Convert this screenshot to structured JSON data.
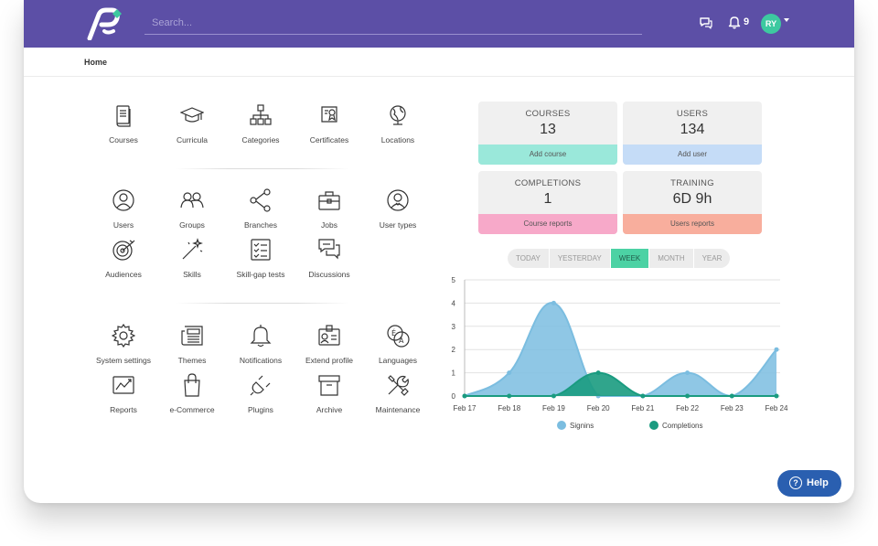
{
  "header": {
    "search_placeholder": "Search...",
    "notifications_count": "9",
    "avatar_initials": "RY"
  },
  "breadcrumb": {
    "home": "Home"
  },
  "tiles": {
    "courses": "Courses",
    "curricula": "Curricula",
    "categories": "Categories",
    "certificates": "Certificates",
    "locations": "Locations",
    "users": "Users",
    "groups": "Groups",
    "branches": "Branches",
    "jobs": "Jobs",
    "user_types": "User types",
    "audiences": "Audiences",
    "skills": "Skills",
    "skill_gap_tests": "Skill-gap tests",
    "discussions": "Discussions",
    "system_settings": "System settings",
    "themes": "Themes",
    "notifications": "Notifications",
    "extend_profile": "Extend profile",
    "languages": "Languages",
    "reports": "Reports",
    "ecommerce": "e-Commerce",
    "plugins": "Plugins",
    "archive": "Archive",
    "maintenance": "Maintenance"
  },
  "stats": {
    "courses": {
      "title": "COURSES",
      "value": "13",
      "action": "Add course",
      "color": "#9ae8da"
    },
    "users": {
      "title": "USERS",
      "value": "134",
      "action": "Add user",
      "color": "#c5dcf7"
    },
    "completions": {
      "title": "COMPLETIONS",
      "value": "1",
      "action": "Course reports",
      "color": "#f7a9c9"
    },
    "training": {
      "title": "TRAINING",
      "value": "6D 9h",
      "action": "Users reports",
      "color": "#f8ae9d"
    }
  },
  "periods": {
    "today": "TODAY",
    "yesterday": "YESTERDAY",
    "week": "WEEK",
    "month": "MONTH",
    "year": "YEAR"
  },
  "help": {
    "label": "Help"
  },
  "chart_data": {
    "type": "area",
    "x": [
      "Feb 17",
      "Feb 18",
      "Feb 19",
      "Feb 20",
      "Feb 21",
      "Feb 22",
      "Feb 23",
      "Feb 24"
    ],
    "ylim": [
      0,
      5
    ],
    "yticks": [
      "0",
      "1",
      "2",
      "3",
      "4",
      "5"
    ],
    "grid": true,
    "legend": "bottom",
    "series": [
      {
        "name": "Signins",
        "values": [
          0,
          1,
          4,
          0,
          0,
          1,
          0,
          2
        ],
        "color": "#7bbde0"
      },
      {
        "name": "Completions",
        "values": [
          0,
          0,
          0,
          1,
          0,
          0,
          0,
          0
        ],
        "color": "#1a9b80"
      }
    ]
  }
}
